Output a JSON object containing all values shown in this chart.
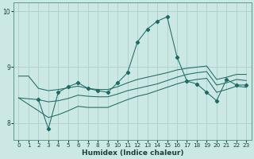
{
  "xlabel": "Humidex (Indice chaleur)",
  "background_color": "#cce8e5",
  "grid_color": "#aad0cc",
  "line_color": "#1e6b65",
  "xlim": [
    -0.5,
    23.5
  ],
  "ylim": [
    7.7,
    10.15
  ],
  "yticks": [
    8,
    9,
    10
  ],
  "xticks": [
    0,
    1,
    2,
    3,
    4,
    5,
    6,
    7,
    8,
    9,
    10,
    11,
    12,
    13,
    14,
    15,
    16,
    17,
    18,
    19,
    20,
    21,
    22,
    23
  ],
  "series_main": {
    "x": [
      2,
      3,
      4,
      5,
      6,
      7,
      8,
      9,
      10,
      11,
      12,
      13,
      14,
      15,
      16,
      17,
      18,
      19,
      20,
      21,
      22,
      23
    ],
    "y": [
      8.42,
      7.9,
      8.55,
      8.65,
      8.72,
      8.62,
      8.58,
      8.55,
      8.72,
      8.9,
      9.45,
      9.68,
      9.82,
      9.9,
      9.18,
      8.75,
      8.7,
      8.55,
      8.4,
      8.78,
      8.68,
      8.68
    ]
  },
  "series_top": {
    "x": [
      0,
      1,
      2,
      3,
      4,
      5,
      6,
      7,
      8,
      9,
      10,
      11,
      12,
      13,
      14,
      15,
      16,
      17,
      18,
      19,
      20,
      21,
      22,
      23
    ],
    "y": [
      8.84,
      8.84,
      8.62,
      8.58,
      8.6,
      8.63,
      8.66,
      8.62,
      8.6,
      8.6,
      8.65,
      8.72,
      8.78,
      8.82,
      8.86,
      8.9,
      8.95,
      8.98,
      9.0,
      9.02,
      8.78,
      8.82,
      8.87,
      8.87
    ]
  },
  "series_mid": {
    "x": [
      0,
      2,
      3,
      4,
      5,
      6,
      7,
      8,
      9,
      10,
      11,
      12,
      13,
      14,
      15,
      16,
      17,
      18,
      19,
      20,
      21,
      22,
      23
    ],
    "y": [
      8.45,
      8.42,
      8.38,
      8.4,
      8.44,
      8.5,
      8.48,
      8.47,
      8.47,
      8.52,
      8.58,
      8.62,
      8.66,
      8.7,
      8.76,
      8.82,
      8.87,
      8.9,
      8.92,
      8.68,
      8.72,
      8.78,
      8.76
    ]
  },
  "series_bot": {
    "x": [
      0,
      2,
      3,
      4,
      5,
      6,
      7,
      8,
      9,
      10,
      11,
      12,
      13,
      14,
      15,
      16,
      17,
      18,
      19,
      20,
      21,
      22,
      23
    ],
    "y": [
      8.45,
      8.22,
      8.1,
      8.15,
      8.22,
      8.3,
      8.28,
      8.28,
      8.28,
      8.35,
      8.42,
      8.48,
      8.52,
      8.58,
      8.64,
      8.7,
      8.75,
      8.78,
      8.8,
      8.55,
      8.6,
      8.66,
      8.64
    ]
  }
}
